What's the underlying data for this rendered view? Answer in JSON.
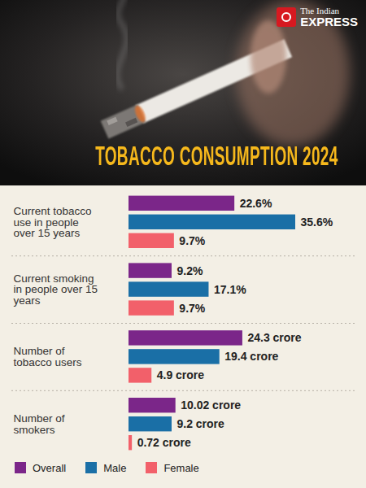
{
  "chart_data": {
    "type": "bar",
    "orientation": "horizontal",
    "source": "The Indian EXPRESS",
    "title": "TOBACCO CONSUMPTION 2024",
    "categories": [
      "Current tobacco use in people over 15 years",
      "Current smoking in people over 15 years",
      "Number of tobacco users",
      "Number of smokers"
    ],
    "series": [
      {
        "name": "Overall",
        "color": "#7b2689",
        "values": [
          22.6,
          9.2,
          24.3,
          10.02
        ],
        "value_labels": [
          "22.6%",
          "9.2%",
          "24.3 crore",
          "10.02 crore"
        ]
      },
      {
        "name": "Male",
        "color": "#1a6fa6",
        "values": [
          35.6,
          17.1,
          19.4,
          9.2
        ],
        "value_labels": [
          "35.6%",
          "17.1%",
          "19.4 crore",
          "9.2 crore"
        ]
      },
      {
        "name": "Female",
        "color": "#f2606a",
        "values": [
          9.7,
          9.7,
          4.9,
          0.72
        ],
        "value_labels": [
          "9.7%",
          "9.7%",
          "4.9 crore",
          "0.72 crore"
        ]
      }
    ],
    "data_labels": true,
    "tick_labels": false,
    "legend": "bottom"
  }
}
